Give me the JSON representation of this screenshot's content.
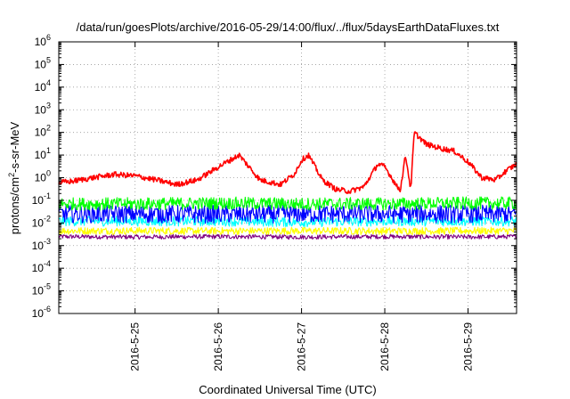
{
  "chart_data": {
    "type": "line",
    "title": "/data/run/goesPlots/archive/2016-05-29/14:00/flux/../flux/5daysEarthDataFluxes.txt",
    "xlabel": "Coordinated Universal Time (UTC)",
    "ylabel": {
      "base": "protons/cm",
      "sup": "2",
      "rest": "-s-sr-MeV"
    },
    "y_scale": "log",
    "ylim": [
      1e-06,
      1000000.0
    ],
    "yticks": [
      {
        "value": 1e-06,
        "base": "10",
        "exp": "-6"
      },
      {
        "value": 1e-05,
        "base": "10",
        "exp": "-5"
      },
      {
        "value": 0.0001,
        "base": "10",
        "exp": "-4"
      },
      {
        "value": 0.001,
        "base": "10",
        "exp": "-3"
      },
      {
        "value": 0.01,
        "base": "10",
        "exp": "-2"
      },
      {
        "value": 0.1,
        "base": "10",
        "exp": "-1"
      },
      {
        "value": 1.0,
        "base": "10",
        "exp": "0"
      },
      {
        "value": 10.0,
        "base": "10",
        "exp": "1"
      },
      {
        "value": 100.0,
        "base": "10",
        "exp": "2"
      },
      {
        "value": 1000.0,
        "base": "10",
        "exp": "3"
      },
      {
        "value": 10000.0,
        "base": "10",
        "exp": "4"
      },
      {
        "value": 100000.0,
        "base": "10",
        "exp": "5"
      },
      {
        "value": 1000000.0,
        "base": "10",
        "exp": "6"
      }
    ],
    "xlim": [
      "2016-05-24T02:00",
      "2016-05-29T14:00"
    ],
    "xticks": [
      {
        "value": "2016-05-25T00:00",
        "label": "2016-5-25"
      },
      {
        "value": "2016-05-26T00:00",
        "label": "2016-5-26"
      },
      {
        "value": "2016-05-27T00:00",
        "label": "2016-5-27"
      },
      {
        "value": "2016-05-28T00:00",
        "label": "2016-5-28"
      },
      {
        "value": "2016-05-29T00:00",
        "label": "2016-5-29"
      }
    ],
    "grid": true,
    "grid_style": "dotted",
    "series": [
      {
        "color": "#800080",
        "x": [
          "2016-05-24T02:00",
          "2016-05-25T00:00",
          "2016-05-26T00:00",
          "2016-05-27T00:00",
          "2016-05-28T00:00",
          "2016-05-29T00:00",
          "2016-05-29T14:00"
        ],
        "values": [
          0.0025,
          0.0024,
          0.0025,
          0.0024,
          0.0025,
          0.0024,
          0.0025
        ],
        "noise": 0.1
      },
      {
        "color": "#ffff00",
        "x": [
          "2016-05-24T02:00",
          "2016-05-25T00:00",
          "2016-05-26T00:00",
          "2016-05-27T00:00",
          "2016-05-28T00:00",
          "2016-05-29T00:00",
          "2016-05-29T14:00"
        ],
        "values": [
          0.0045,
          0.0045,
          0.0044,
          0.0045,
          0.0044,
          0.0045,
          0.0045
        ],
        "noise": 0.16
      },
      {
        "color": "#00ffff",
        "x": [
          "2016-05-24T02:00",
          "2016-05-25T00:00",
          "2016-05-26T00:00",
          "2016-05-27T00:00",
          "2016-05-28T00:00",
          "2016-05-29T00:00",
          "2016-05-29T14:00"
        ],
        "values": [
          0.012,
          0.012,
          0.012,
          0.011,
          0.012,
          0.012,
          0.012
        ],
        "noise": 0.22
      },
      {
        "color": "#0000ff",
        "x": [
          "2016-05-24T02:00",
          "2016-05-25T00:00",
          "2016-05-26T00:00",
          "2016-05-27T00:00",
          "2016-05-28T00:00",
          "2016-05-29T00:00",
          "2016-05-29T14:00"
        ],
        "values": [
          0.025,
          0.025,
          0.024,
          0.025,
          0.025,
          0.025,
          0.025
        ],
        "noise": 0.4
      },
      {
        "color": "#00ff00",
        "x": [
          "2016-05-24T02:00",
          "2016-05-25T00:00",
          "2016-05-26T00:00",
          "2016-05-27T00:00",
          "2016-05-28T00:00",
          "2016-05-29T00:00",
          "2016-05-29T14:00"
        ],
        "values": [
          0.07,
          0.07,
          0.075,
          0.07,
          0.07,
          0.075,
          0.075
        ],
        "noise": 0.28
      },
      {
        "color": "#ff0000",
        "x": [
          "2016-05-24T02:00",
          "2016-05-24T06:00",
          "2016-05-24T12:00",
          "2016-05-24T18:00",
          "2016-05-25T00:00",
          "2016-05-25T06:00",
          "2016-05-25T12:00",
          "2016-05-25T18:00",
          "2016-05-26T00:00",
          "2016-05-26T06:00",
          "2016-05-26T12:00",
          "2016-05-26T18:00",
          "2016-05-26T22:00",
          "2016-05-27T00:00",
          "2016-05-27T02:00",
          "2016-05-27T06:00",
          "2016-05-27T10:00",
          "2016-05-27T14:00",
          "2016-05-27T18:00",
          "2016-05-27T22:00",
          "2016-05-28T00:00",
          "2016-05-28T02:00",
          "2016-05-28T03:30",
          "2016-05-28T04:30",
          "2016-05-28T06:00",
          "2016-05-28T07:30",
          "2016-05-28T08:30",
          "2016-05-28T12:00",
          "2016-05-28T16:00",
          "2016-05-28T20:00",
          "2016-05-29T00:00",
          "2016-05-29T04:00",
          "2016-05-29T08:00",
          "2016-05-29T11:00",
          "2016-05-29T14:00"
        ],
        "values": [
          0.6,
          0.7,
          1.0,
          1.4,
          1.2,
          0.8,
          0.5,
          0.8,
          3.0,
          10.0,
          0.8,
          0.5,
          1.5,
          6.0,
          10.0,
          0.8,
          0.3,
          0.25,
          0.4,
          4.0,
          3.0,
          1.0,
          0.4,
          0.3,
          10.0,
          0.3,
          100.0,
          30.0,
          20.0,
          15.0,
          5.0,
          1.0,
          0.8,
          2.0,
          4.0
        ],
        "noise": 0.12
      }
    ]
  }
}
